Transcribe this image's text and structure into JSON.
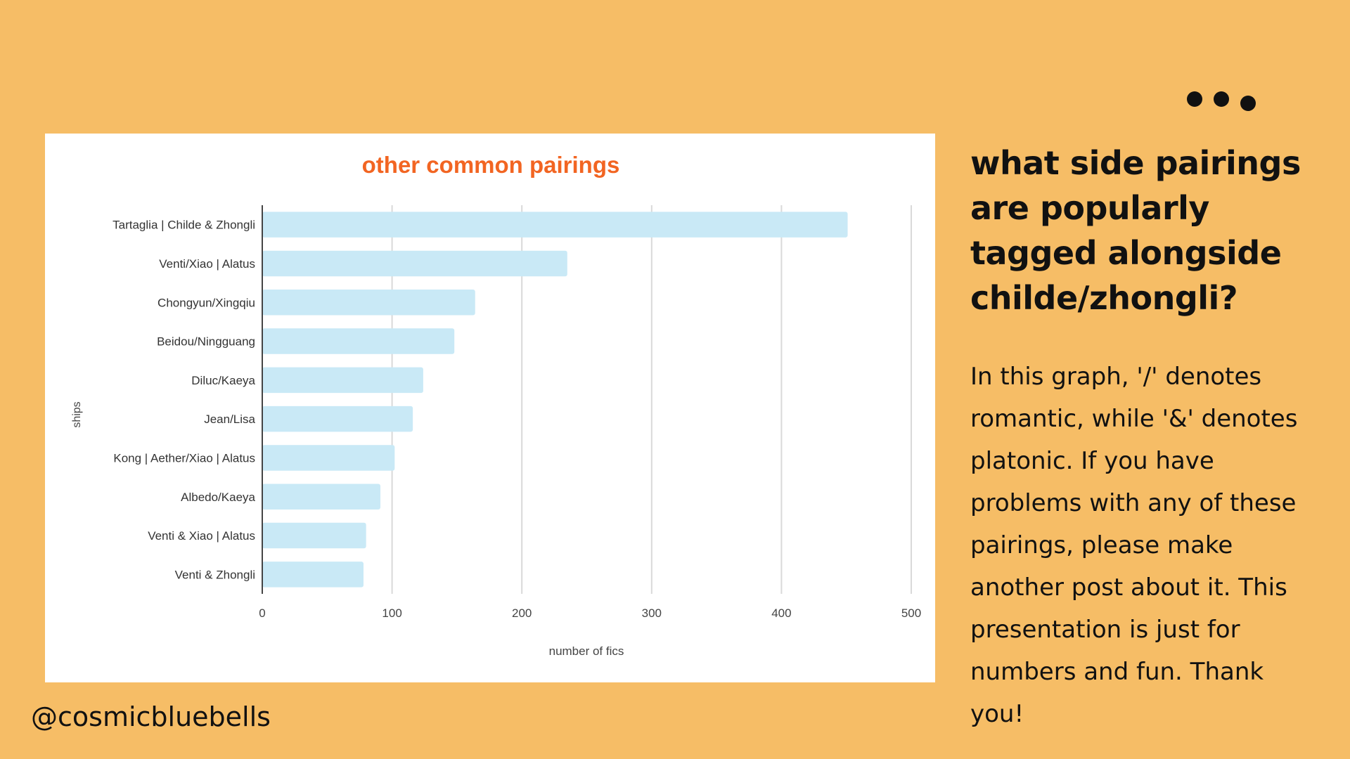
{
  "slide": {
    "heading": "what side pairings are popularly tagged alongside childe/zhongli?",
    "description": "In this graph, '/' denotes romantic, while '&' denotes platonic. If you have problems with any of these pairings, please make another post about it. This presentation is just for numbers and fun. Thank you!",
    "handle": "@cosmicbluebells",
    "menu_icon": "more-dots-icon"
  },
  "colors": {
    "background": "#f6bd66",
    "bar": "#c9e9f6",
    "title": "#f26522",
    "grid": "#d9d9d9",
    "axis": "#444444"
  },
  "chart_data": {
    "type": "bar",
    "orientation": "horizontal",
    "title": "other common pairings",
    "xlabel": "number of fics",
    "ylabel": "ships",
    "categories": [
      "Tartaglia | Childe & Zhongli",
      "Venti/Xiao | Alatus",
      "Chongyun/Xingqiu",
      "Beidou/Ningguang",
      "Diluc/Kaeya",
      "Jean/Lisa",
      "Kong | Aether/Xiao | Alatus",
      "Albedo/Kaeya",
      "Venti & Xiao | Alatus",
      "Venti & Zhongli"
    ],
    "values": [
      451,
      235,
      164,
      148,
      124,
      116,
      102,
      91,
      80,
      78
    ],
    "xlim": [
      0,
      500
    ],
    "xticks": [
      0,
      100,
      200,
      300,
      400,
      500
    ],
    "grid": true,
    "legend": "none"
  }
}
